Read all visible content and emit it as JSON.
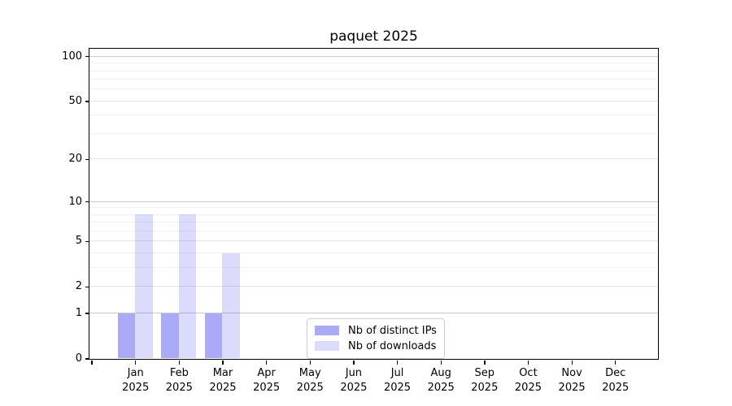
{
  "chart_data": {
    "type": "bar",
    "title": "paquet 2025",
    "categories": [
      {
        "month": "Jan",
        "year": "2025"
      },
      {
        "month": "Feb",
        "year": "2025"
      },
      {
        "month": "Mar",
        "year": "2025"
      },
      {
        "month": "Apr",
        "year": "2025"
      },
      {
        "month": "May",
        "year": "2025"
      },
      {
        "month": "Jun",
        "year": "2025"
      },
      {
        "month": "Jul",
        "year": "2025"
      },
      {
        "month": "Aug",
        "year": "2025"
      },
      {
        "month": "Sep",
        "year": "2025"
      },
      {
        "month": "Oct",
        "year": "2025"
      },
      {
        "month": "Nov",
        "year": "2025"
      },
      {
        "month": "Dec",
        "year": "2025"
      }
    ],
    "series": [
      {
        "name": "Nb of distinct IPs",
        "color": "rgba(100,100,240,0.55)",
        "values": [
          1,
          1,
          1,
          0,
          0,
          0,
          0,
          0,
          0,
          0,
          0,
          0
        ]
      },
      {
        "name": "Nb of downloads",
        "color": "rgba(100,100,240,0.23)",
        "values": [
          8,
          8,
          4,
          0,
          0,
          0,
          0,
          0,
          0,
          0,
          0,
          0
        ]
      }
    ],
    "y_axis": {
      "scale": "log10(1+x)",
      "ticks": [
        0,
        1,
        2,
        5,
        10,
        20,
        50,
        100
      ],
      "tick_labels": [
        "0",
        "1",
        "2",
        "5",
        "10",
        "20",
        "50",
        "100"
      ],
      "decade_ticks": [
        1,
        10,
        100
      ],
      "minor_ticks": [
        3,
        4,
        6,
        7,
        8,
        9,
        30,
        40,
        60,
        70,
        80,
        90
      ],
      "ylim": [
        0,
        113
      ]
    },
    "legend_position": "lower center",
    "grid": true,
    "colors": {
      "grid_decade": "#c9c9c9",
      "grid_major": "#e4e4e4",
      "grid_minor": "#efefef",
      "spine": "#000000",
      "text": "#000000",
      "legend_border": "#cccccc"
    }
  }
}
